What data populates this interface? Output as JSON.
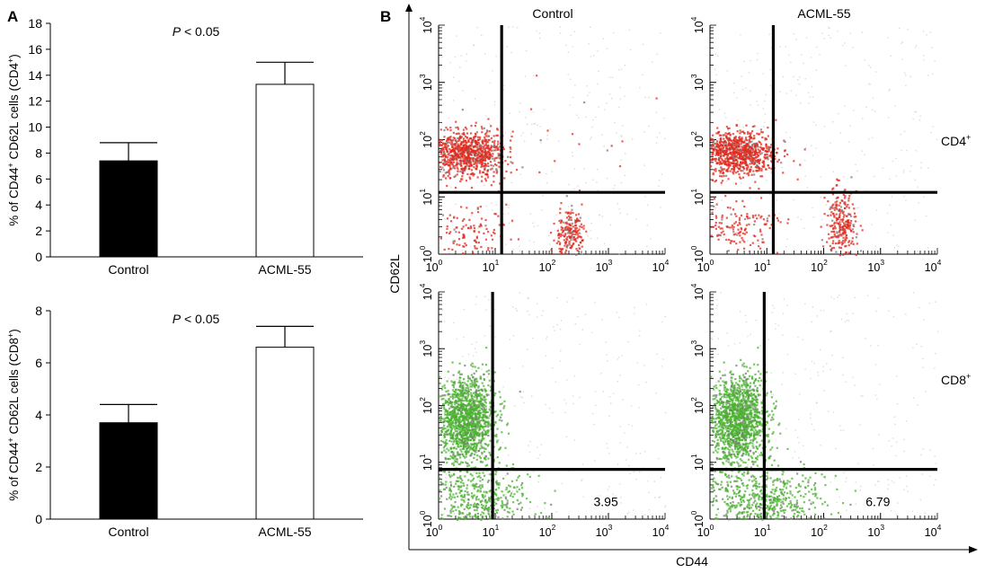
{
  "figure": {
    "panel_a_label": "A",
    "panel_b_label": "B"
  },
  "chart_data": [
    {
      "type": "bar",
      "panel": "A",
      "categories": [
        "Control",
        "ACML-55"
      ],
      "values": [
        7.4,
        13.3
      ],
      "errors": [
        1.4,
        1.7
      ],
      "bar_colors": [
        "#000000",
        "#ffffff"
      ],
      "ylabel": "% of CD44+ CD62L cells (CD4+)",
      "ylabel_parts": [
        "% of CD44",
        "+",
        " CD62L cells (CD4",
        "+",
        ")"
      ],
      "ylim": [
        0,
        18
      ],
      "yticks": [
        0,
        2,
        4,
        6,
        8,
        10,
        12,
        14,
        16,
        18
      ],
      "annotation": "P < 0.05",
      "annotation_parts": [
        "P",
        " < 0.05"
      ]
    },
    {
      "type": "bar",
      "panel": "A",
      "categories": [
        "Control",
        "ACML-55"
      ],
      "values": [
        3.7,
        6.6
      ],
      "errors": [
        0.7,
        0.8
      ],
      "bar_colors": [
        "#000000",
        "#ffffff"
      ],
      "ylabel": "% of CD44+ CD62L cells (CD8+)",
      "ylabel_parts": [
        "% of CD44",
        "+",
        " CD62L cells (CD8",
        "+",
        ")"
      ],
      "ylim": [
        0,
        8
      ],
      "yticks": [
        0,
        2,
        4,
        6,
        8
      ],
      "annotation": "P < 0.05",
      "annotation_parts": [
        "P",
        " < 0.05"
      ]
    },
    {
      "type": "scatter",
      "panel": "B",
      "subtype": "flow-cytometry-dot-plot",
      "xlabel": "CD44",
      "ylabel": "CD62L",
      "xscale": "log",
      "yscale": "log",
      "xlim": [
        1,
        10000
      ],
      "ylim": [
        1,
        10000
      ],
      "tick_base": "10",
      "tick_exponents": [
        "0",
        "1",
        "2",
        "3",
        "4"
      ],
      "column_headers": [
        "Control",
        "ACML-55"
      ],
      "row_labels": [
        {
          "base": "CD4",
          "sup": "+"
        },
        {
          "base": "CD8",
          "sup": "+"
        }
      ],
      "plots": [
        {
          "row": "CD4+",
          "group": "Control",
          "dot_color": "#e0281c",
          "gate": {
            "x": 13,
            "y": 12
          },
          "populations": [
            {
              "cx": 3,
              "cy": 60,
              "sx": 0.33,
              "sy": 0.2,
              "n": 900
            },
            {
              "cx": 200,
              "cy": 2.4,
              "sx": 0.13,
              "sy": 0.22,
              "n": 200
            },
            {
              "cx": 3,
              "cy": 2.4,
              "sx": 0.35,
              "sy": 0.25,
              "n": 120
            },
            {
              "cx": 400,
              "cy": 150,
              "sx": 0.6,
              "sy": 0.5,
              "n": 14
            }
          ],
          "percentage": ""
        },
        {
          "row": "CD4+",
          "group": "ACML-55",
          "dot_color": "#e0281c",
          "gate": {
            "x": 13,
            "y": 12
          },
          "populations": [
            {
              "cx": 3,
              "cy": 60,
              "sx": 0.33,
              "sy": 0.2,
              "n": 900
            },
            {
              "cx": 200,
              "cy": 3.5,
              "sx": 0.13,
              "sy": 0.3,
              "n": 260
            },
            {
              "cx": 3,
              "cy": 2.4,
              "sx": 0.35,
              "sy": 0.25,
              "n": 150
            }
          ],
          "percentage": ""
        },
        {
          "row": "CD8+",
          "group": "Control",
          "dot_color": "#49b22f",
          "gate": {
            "x": 9,
            "y": 7.5
          },
          "populations": [
            {
              "cx": 3,
              "cy": 60,
              "sx": 0.25,
              "sy": 0.38,
              "n": 1400
            },
            {
              "cx": 5,
              "cy": 2.0,
              "sx": 0.45,
              "sy": 0.35,
              "n": 500
            }
          ],
          "percentage": "3.95"
        },
        {
          "row": "CD8+",
          "group": "ACML-55",
          "dot_color": "#49b22f",
          "gate": {
            "x": 9,
            "y": 7.5
          },
          "populations": [
            {
              "cx": 3,
              "cy": 60,
              "sx": 0.25,
              "sy": 0.38,
              "n": 1400
            },
            {
              "cx": 8,
              "cy": 2.0,
              "sx": 0.55,
              "sy": 0.35,
              "n": 650
            }
          ],
          "percentage": "6.79"
        }
      ]
    }
  ]
}
